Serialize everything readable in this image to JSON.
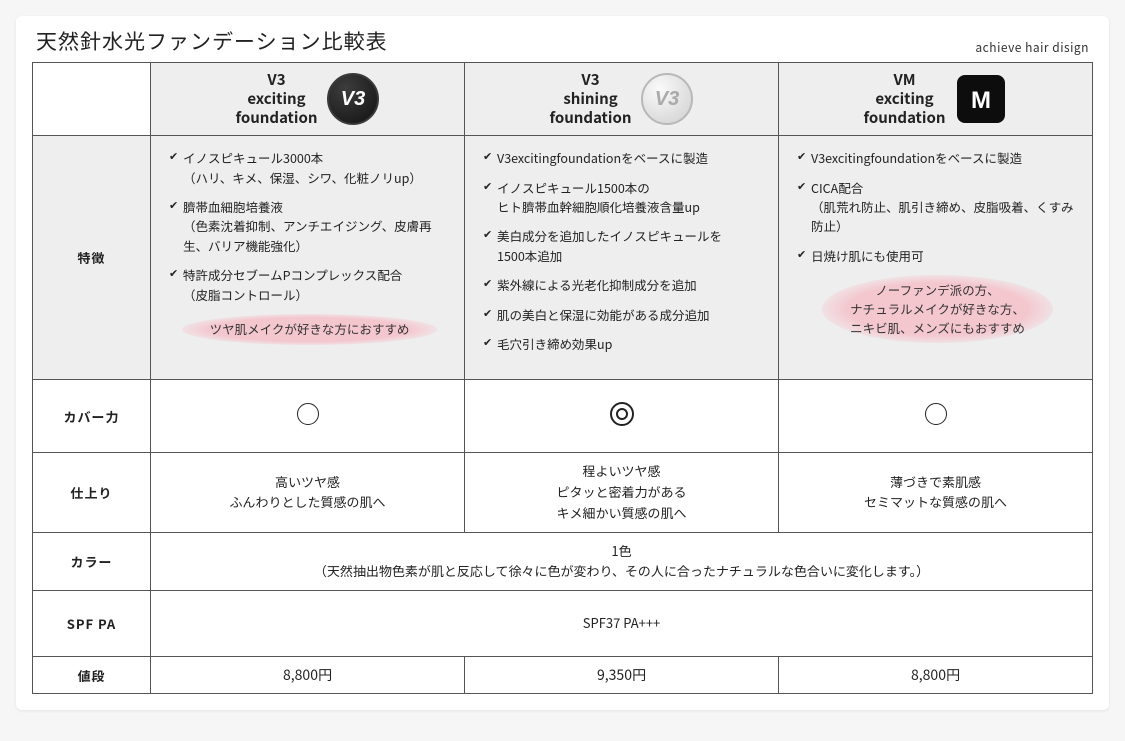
{
  "title": "天然針水光ファンデーション比較表",
  "brand": "achieve hair disign",
  "row_labels": {
    "features": "特徴",
    "coverage": "カバー力",
    "finish": "仕上り",
    "color": "カラー",
    "spf": "SPF   PA",
    "price": "値段"
  },
  "products": [
    {
      "name_line1": "V3",
      "name_line2": "exciting",
      "name_line3": "foundation",
      "icon": "v3-black",
      "features": [
        {
          "head": "イノスピキュール3000本",
          "sub": "（ハリ、キメ、保湿、シワ、化粧ノリup）"
        },
        {
          "head": "臍帯血細胞培養液",
          "sub": "（色素沈着抑制、アンチエイジング、皮膚再生、バリア機能強化）"
        },
        {
          "head": "特許成分セブームPコンプレックス配合",
          "sub": "（皮脂コントロール）"
        }
      ],
      "recommend": "ツヤ肌メイクが好きな方におすすめ",
      "coverage": "single",
      "finish": "高いツヤ感\nふんわりとした質感の肌へ",
      "price": "8,800円"
    },
    {
      "name_line1": "V3",
      "name_line2": "shining",
      "name_line3": "foundation",
      "icon": "v3-silver",
      "features": [
        {
          "head": "V3excitingfoundationをベースに製造"
        },
        {
          "head": "イノスピキュール1500本の",
          "sub": "ヒト臍帯血幹細胞順化培養液含量up"
        },
        {
          "head": "美白成分を追加したイノスピキュールを",
          "sub": "1500本追加"
        },
        {
          "head": "紫外線による光老化抑制成分を追加"
        },
        {
          "head": "肌の美白と保湿に効能がある成分追加"
        },
        {
          "head": "毛穴引き締め効果up"
        }
      ],
      "recommend": "",
      "coverage": "double",
      "finish": "程よいツヤ感\nピタッと密着力がある\nキメ細かい質感の肌へ",
      "price": "9,350円"
    },
    {
      "name_line1": "VM",
      "name_line2": "exciting",
      "name_line3": "foundation",
      "icon": "vm-black",
      "features": [
        {
          "head": "V3excitingfoundationをベースに製造"
        },
        {
          "head": "CICA配合",
          "sub": "（肌荒れ防止、肌引き締め、皮脂吸着、くすみ防止）"
        },
        {
          "head": "日焼け肌にも使用可"
        }
      ],
      "recommend": "ノーファンデ派の方、\nナチュラルメイクが好きな方、\nニキビ肌、メンズにもおすすめ",
      "coverage": "single",
      "finish": "薄づきで素肌感\nセミマットな質感の肌へ",
      "price": "8,800円"
    }
  ],
  "color_row": "1色\n（天然抽出物色素が肌と反応して徐々に色が変わり、その人に合ったナチュラルな色合いに変化します。）",
  "spf_row": "SPF37 PA+++",
  "colors": {
    "bg_page": "#f6f6f6",
    "bg_sheet": "#ffffff",
    "bg_shade": "#eeeeee",
    "border": "#555555",
    "reco_pink": "#f4c7cf",
    "text": "#222222"
  },
  "icons": {
    "v3-black": {
      "shape": "circle",
      "bg": "#1a1a1a",
      "ring": "#3a3a3a",
      "label": "V3",
      "label_color": "#fff"
    },
    "v3-silver": {
      "shape": "circle",
      "bg": "#d7d7d7",
      "ring": "#b8b8b8",
      "label": "V3",
      "label_color": "#aaa"
    },
    "vm-black": {
      "shape": "rounded-square",
      "bg": "#0d0d0d",
      "label": "M",
      "label_color": "#ffffff"
    }
  }
}
